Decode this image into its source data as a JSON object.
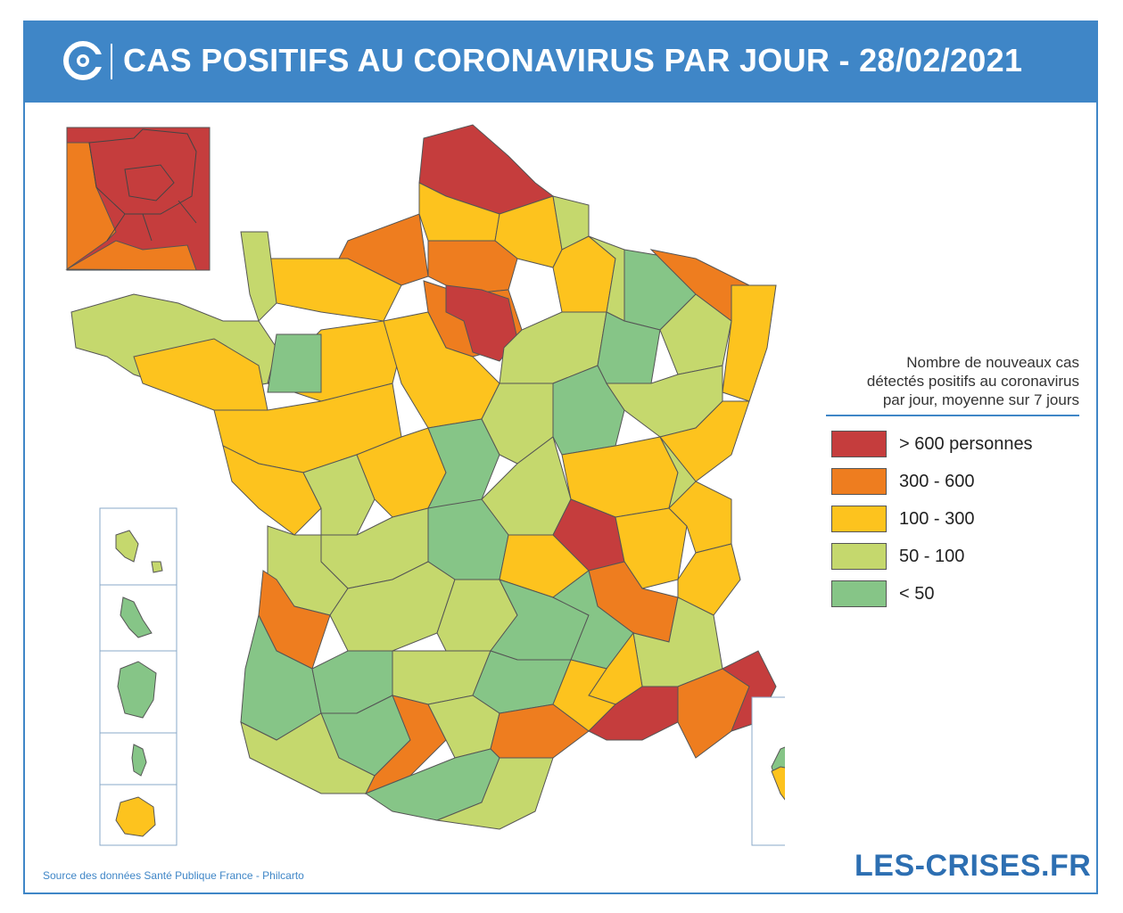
{
  "header": {
    "title": "CAS POSITIFS AU CORONAVIRUS PAR JOUR - 28/02/2021"
  },
  "legend": {
    "title_lines": [
      "Nombre de nouveaux cas",
      "détectés positifs au coronavirus",
      "par jour, moyenne sur 7 jours"
    ],
    "items": [
      {
        "label": "> 600 personnes",
        "color": "#c53d3d"
      },
      {
        "label": "300 - 600",
        "color": "#ee7d1f"
      },
      {
        "label": "100 - 300",
        "color": "#fdc31e"
      },
      {
        "label": "50 - 100",
        "color": "#c5d86d"
      },
      {
        "label": "< 50",
        "color": "#86c587"
      }
    ]
  },
  "footer": {
    "source": "Source des données Santé Publique France - Philcarto",
    "brand": "LES-CRISES.FR"
  }
}
